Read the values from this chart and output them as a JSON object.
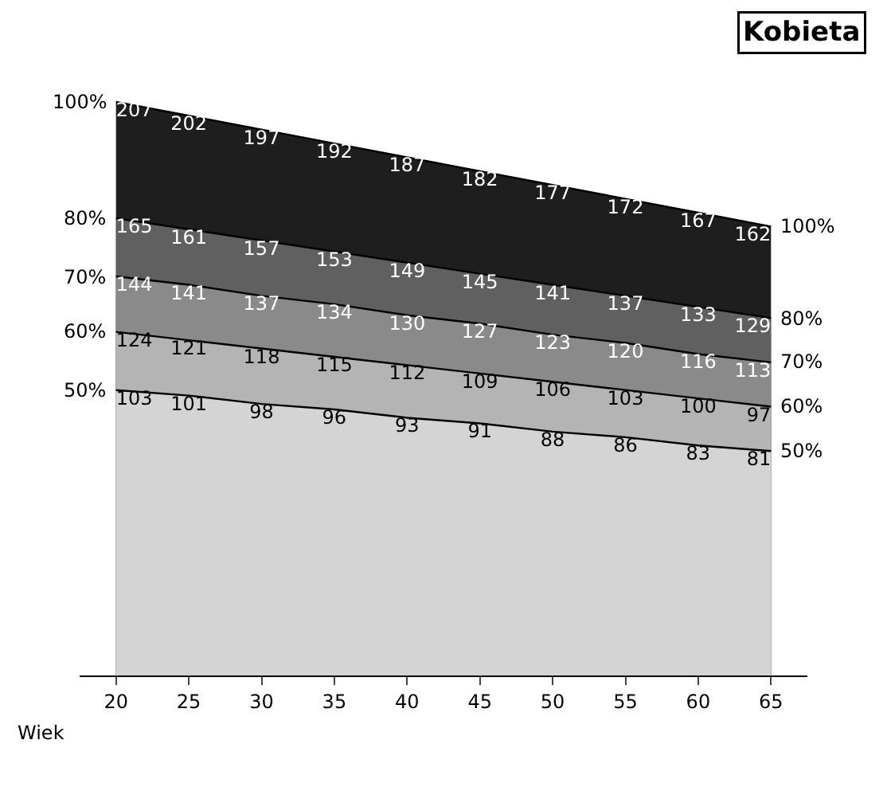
{
  "chart_data": {
    "type": "area",
    "title": "Kobieta",
    "xlabel": "Wiek",
    "data_labels": true,
    "tick_labels": "x",
    "marker": "none",
    "categories": [
      "20",
      "25",
      "30",
      "35",
      "40",
      "45",
      "50",
      "55",
      "60",
      "65"
    ],
    "series": [
      {
        "color": "#1e1e1e",
        "values": [
          207,
          202,
          197,
          192,
          187,
          182,
          177,
          172,
          167,
          162
        ]
      },
      {
        "color": "#606060",
        "values": [
          165,
          161,
          157,
          153,
          149,
          145,
          141,
          137,
          133,
          129
        ]
      },
      {
        "color": "#8a8a8a",
        "values": [
          144,
          141,
          137,
          134,
          130,
          127,
          123,
          120,
          116,
          113
        ]
      },
      {
        "color": "#b4b4b4",
        "values": [
          124,
          121,
          118,
          115,
          112,
          109,
          106,
          103,
          100,
          97
        ]
      },
      {
        "color": "#d4d4d4",
        "values": [
          103,
          101,
          98,
          96,
          93,
          91,
          88,
          86,
          83,
          81
        ]
      }
    ],
    "annotations": [
      {
        "text": "100%",
        "x": "20",
        "y": 207
      },
      {
        "text": "80%",
        "x": "20",
        "y": 165
      },
      {
        "text": "70%",
        "x": "20",
        "y": 144
      },
      {
        "text": "60%",
        "x": "20",
        "y": 124
      },
      {
        "text": "50%",
        "x": "20",
        "y": 103
      },
      {
        "text": "100%",
        "x": "65",
        "y": 162
      },
      {
        "text": "80%",
        "x": "65",
        "y": 129
      },
      {
        "text": "70%",
        "x": "65",
        "y": 113
      },
      {
        "text": "60%",
        "x": "65",
        "y": 97
      },
      {
        "text": "50%",
        "x": "65",
        "y": 81
      }
    ]
  }
}
